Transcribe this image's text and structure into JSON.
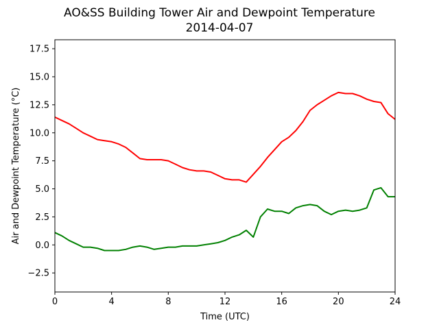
{
  "chart_data": {
    "type": "line",
    "title": "AO&SS Building Tower Air and Dewpoint Temperature",
    "subtitle": "2014-04-07",
    "xlabel": "Time (UTC)",
    "ylabel": "Air and Dewpoint Temperature (°C)",
    "xlim": [
      0,
      24
    ],
    "ylim": [
      -4.2,
      18.3
    ],
    "xticks": [
      0,
      4,
      8,
      12,
      16,
      20,
      24
    ],
    "xtick_labels": [
      "0",
      "4",
      "8",
      "12",
      "16",
      "20",
      "24"
    ],
    "yticks": [
      -2.5,
      0.0,
      2.5,
      5.0,
      7.5,
      10.0,
      12.5,
      15.0,
      17.5
    ],
    "ytick_labels": [
      "−2.5",
      "0.0",
      "2.5",
      "5.0",
      "7.5",
      "10.0",
      "12.5",
      "15.0",
      "17.5"
    ],
    "grid": false,
    "legend": "none",
    "series": [
      {
        "color": "#ff0000",
        "x": [
          0,
          0.5,
          1,
          1.5,
          2,
          2.5,
          3,
          3.5,
          4,
          4.5,
          5,
          5.5,
          6,
          6.5,
          7,
          7.5,
          8,
          8.5,
          9,
          9.5,
          10,
          10.5,
          11,
          11.5,
          12,
          12.5,
          13,
          13.5,
          14,
          14.5,
          15,
          15.5,
          16,
          16.5,
          17,
          17.5,
          18,
          18.5,
          19,
          19.5,
          20,
          20.5,
          21,
          21.5,
          22,
          22.5,
          23,
          23.5,
          24
        ],
        "y": [
          11.4,
          11.1,
          10.8,
          10.4,
          10.0,
          9.7,
          9.4,
          9.3,
          9.2,
          9.0,
          8.7,
          8.2,
          7.7,
          7.6,
          7.6,
          7.6,
          7.5,
          7.2,
          6.9,
          6.7,
          6.6,
          6.6,
          6.5,
          6.2,
          5.9,
          5.8,
          5.8,
          5.6,
          6.3,
          7.0,
          7.8,
          8.5,
          9.2,
          9.6,
          10.2,
          11.0,
          12.0,
          12.5,
          12.9,
          13.3,
          13.6,
          13.5,
          13.5,
          13.3,
          13.0,
          12.8,
          12.7,
          11.7,
          11.2
        ]
      },
      {
        "color": "#008000",
        "x": [
          0,
          0.5,
          1,
          1.5,
          2,
          2.5,
          3,
          3.5,
          4,
          4.5,
          5,
          5.5,
          6,
          6.5,
          7,
          7.5,
          8,
          8.5,
          9,
          9.5,
          10,
          10.5,
          11,
          11.5,
          12,
          12.5,
          13,
          13.5,
          14,
          14.5,
          15,
          15.5,
          16,
          16.5,
          17,
          17.5,
          18,
          18.5,
          19,
          19.5,
          20,
          20.5,
          21,
          21.5,
          22,
          22.5,
          23,
          23.5,
          24
        ],
        "y": [
          1.1,
          0.8,
          0.4,
          0.1,
          -0.2,
          -0.2,
          -0.3,
          -0.5,
          -0.5,
          -0.5,
          -0.4,
          -0.2,
          -0.1,
          -0.2,
          -0.4,
          -0.3,
          -0.2,
          -0.2,
          -0.1,
          -0.1,
          -0.1,
          0.0,
          0.1,
          0.2,
          0.4,
          0.7,
          0.9,
          1.3,
          0.7,
          2.5,
          3.2,
          3.0,
          3.0,
          2.8,
          3.3,
          3.5,
          3.6,
          3.5,
          3.0,
          2.7,
          3.0,
          3.1,
          3.0,
          3.1,
          3.3,
          4.9,
          5.1,
          4.3,
          4.3
        ]
      }
    ]
  }
}
